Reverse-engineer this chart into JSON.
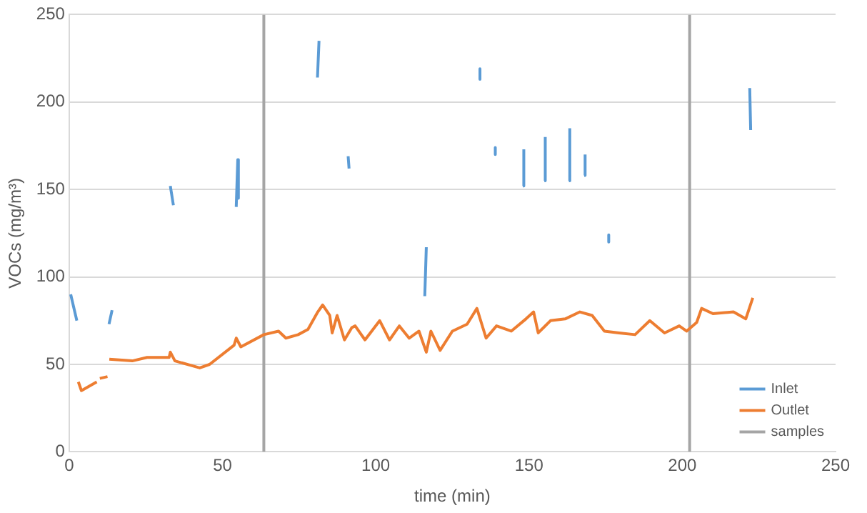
{
  "chart_data": {
    "type": "line",
    "xlabel": "time (min)",
    "ylabel": "VOCs (mg/m³)",
    "xlim": [
      0,
      250
    ],
    "xticks": [
      0,
      50,
      100,
      150,
      200,
      250
    ],
    "ylim": [
      0,
      250
    ],
    "yticks": [
      0,
      50,
      100,
      150,
      200,
      250
    ],
    "grid": "y",
    "legend": "bottom right",
    "marker": "none",
    "line_style": "solid",
    "series": [
      {
        "name": "Inlet",
        "color": "#5b9bd5",
        "x": [
          0.5,
          2.5,
          null,
          13,
          14,
          null,
          33,
          34,
          null,
          54.5,
          55,
          55.2,
          null,
          81,
          81.5,
          null,
          91,
          91.3,
          null,
          116,
          116.5,
          null,
          134,
          134,
          null,
          139,
          139,
          null,
          148,
          148.3,
          null,
          155,
          155.3,
          null,
          163,
          163.3,
          null,
          168,
          168.3,
          null,
          176,
          176,
          null,
          222,
          222.3
        ],
        "values": [
          90,
          75,
          null,
          73,
          81,
          null,
          152,
          141,
          null,
          140,
          167,
          145,
          null,
          214,
          235,
          null,
          169,
          162,
          null,
          89,
          117,
          null,
          219,
          213,
          null,
          174,
          170,
          null,
          152,
          173,
          null,
          155,
          180,
          null,
          155,
          185,
          null,
          158,
          170,
          null,
          124,
          120,
          null,
          208,
          184
        ]
      },
      {
        "name": "Outlet",
        "color": "#ed7d31",
        "x": [
          3,
          4,
          9,
          null,
          10,
          12.5,
          null,
          13.1,
          20.6,
          25.4,
          32.6,
          33,
          34.5,
          42.6,
          45.8,
          53.8,
          54.5,
          56,
          63.5,
          68.3,
          70.7,
          74.7,
          77.9,
          81.1,
          82.7,
          85,
          85.8,
          87.4,
          89.8,
          92.2,
          93.3,
          96.5,
          101.3,
          104.5,
          107.7,
          110.9,
          114.1,
          116.5,
          118,
          121,
          125,
          129.8,
          133,
          136,
          139.4,
          144.2,
          149,
          151.5,
          153,
          157,
          161.8,
          166.6,
          170.6,
          174.6,
          179.4,
          184.6,
          189.4,
          194.2,
          199,
          201.4,
          204.7,
          206.3,
          210,
          216.7,
          220.7,
          223
        ],
        "values": [
          40,
          35,
          40,
          null,
          42,
          43,
          null,
          53,
          52,
          54,
          54,
          57,
          52,
          48,
          50,
          61,
          65,
          60,
          67,
          69,
          65,
          67,
          70,
          80,
          84,
          78,
          68,
          78,
          64,
          71,
          72,
          64,
          75,
          64,
          72,
          65,
          69,
          57,
          69,
          58,
          69,
          73,
          82,
          65,
          72,
          69,
          76,
          80,
          68,
          75,
          76,
          80,
          78,
          69,
          68,
          67,
          75,
          68,
          72,
          69,
          74,
          82,
          79,
          80,
          76,
          88
        ]
      },
      {
        "name": "samples",
        "color": "#a5a5a5",
        "x": [
          63.5,
          63.5,
          null,
          202.4,
          202.4
        ],
        "values": [
          0,
          250,
          null,
          0,
          250
        ]
      }
    ]
  }
}
